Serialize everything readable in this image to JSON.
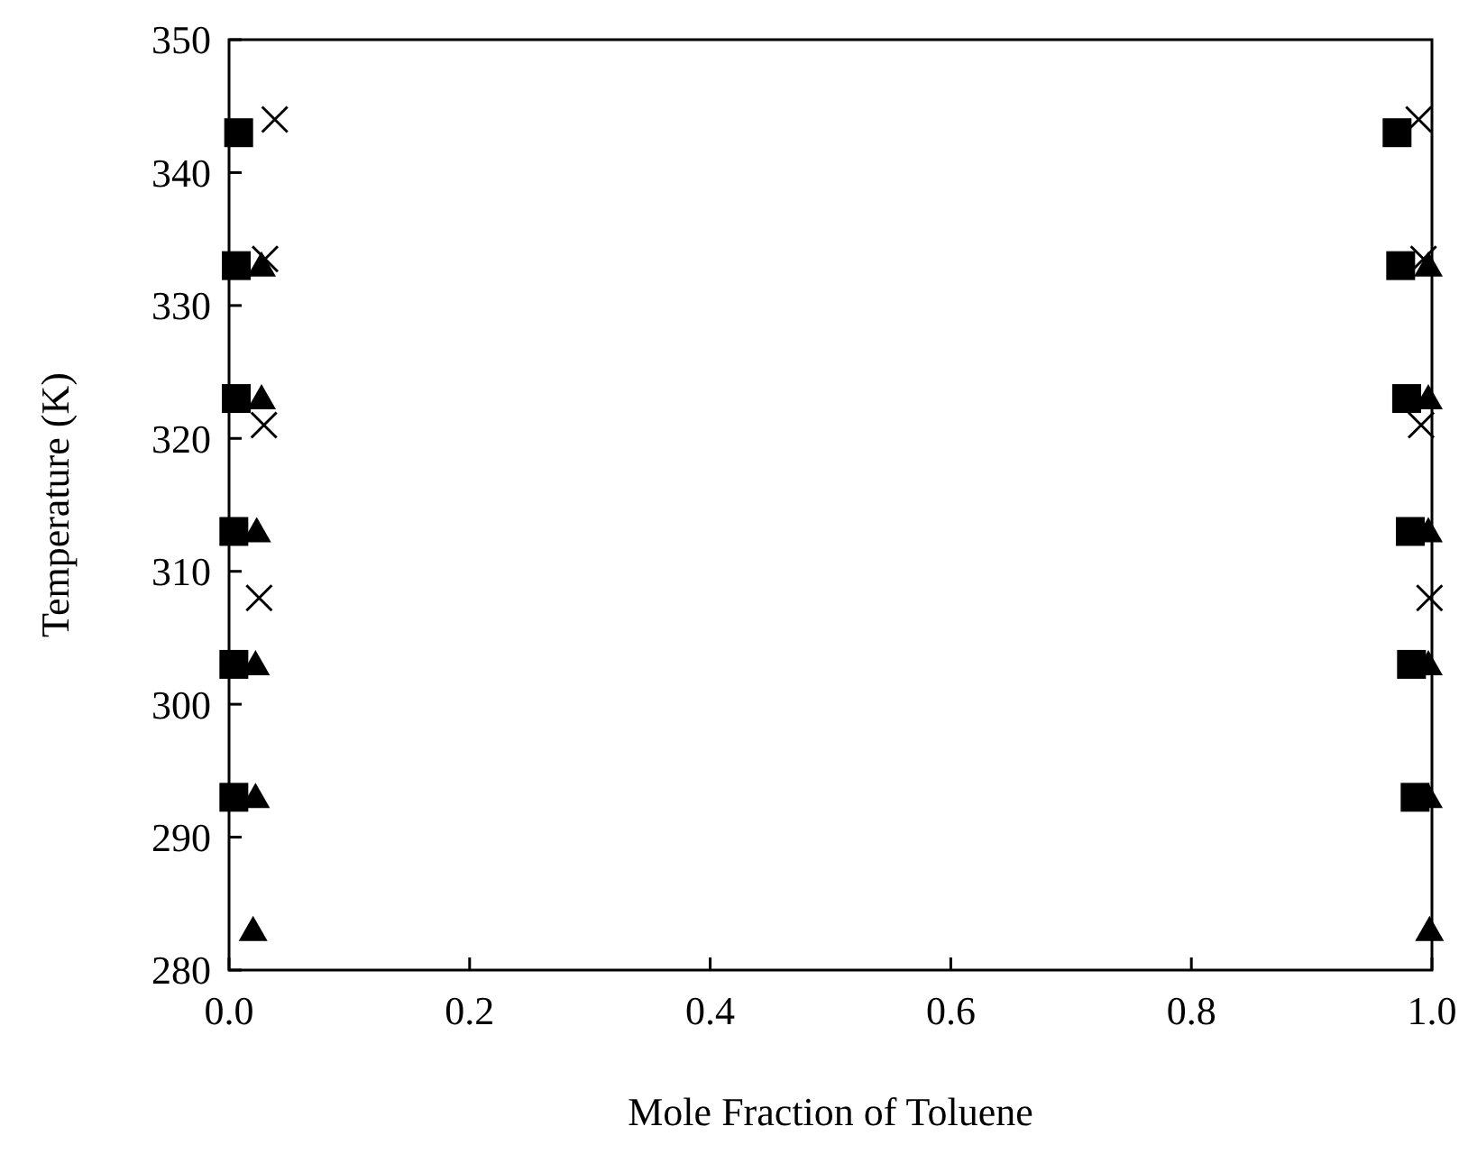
{
  "chart_data": {
    "type": "scatter",
    "xlabel": "Mole Fraction of Toluene",
    "ylabel": "Temperature (K)",
    "xlim": [
      0,
      1
    ],
    "ylim": [
      280,
      350
    ],
    "xticks": [
      {
        "value": 0,
        "label": "0.0"
      },
      {
        "value": 0.2,
        "label": "0.2"
      },
      {
        "value": 0.4,
        "label": "0.4"
      },
      {
        "value": 0.6,
        "label": "0.6"
      },
      {
        "value": 0.8,
        "label": "0.8"
      },
      {
        "value": 1,
        "label": "1.0"
      }
    ],
    "yticks": [
      280,
      290,
      300,
      310,
      320,
      330,
      340,
      350
    ],
    "grid": false,
    "series": [
      {
        "color": "#000000",
        "marker": "square",
        "x": [
          0.008,
          0.006,
          0.006,
          0.004,
          0.004,
          0.004,
          0.971,
          0.974,
          0.979,
          0.982,
          0.983,
          0.986
        ],
        "values": [
          343,
          333,
          323,
          313,
          303,
          293,
          343,
          333,
          323,
          313,
          303,
          293
        ]
      },
      {
        "color": "#000000",
        "marker": "triangle",
        "x": [
          0.027,
          0.027,
          0.023,
          0.022,
          0.022,
          0.02,
          0.997,
          0.997,
          0.997,
          0.997,
          0.997,
          0.998
        ],
        "values": [
          333,
          323,
          313,
          303,
          293,
          283,
          333,
          323,
          313,
          303,
          293,
          283
        ]
      },
      {
        "color": "#000000",
        "marker": "cross",
        "x": [
          0.038,
          0.03,
          0.029,
          0.025,
          0.989,
          0.993,
          0.991,
          0.998
        ],
        "values": [
          344,
          333.5,
          321,
          308,
          344,
          333.5,
          321,
          308
        ]
      }
    ]
  }
}
